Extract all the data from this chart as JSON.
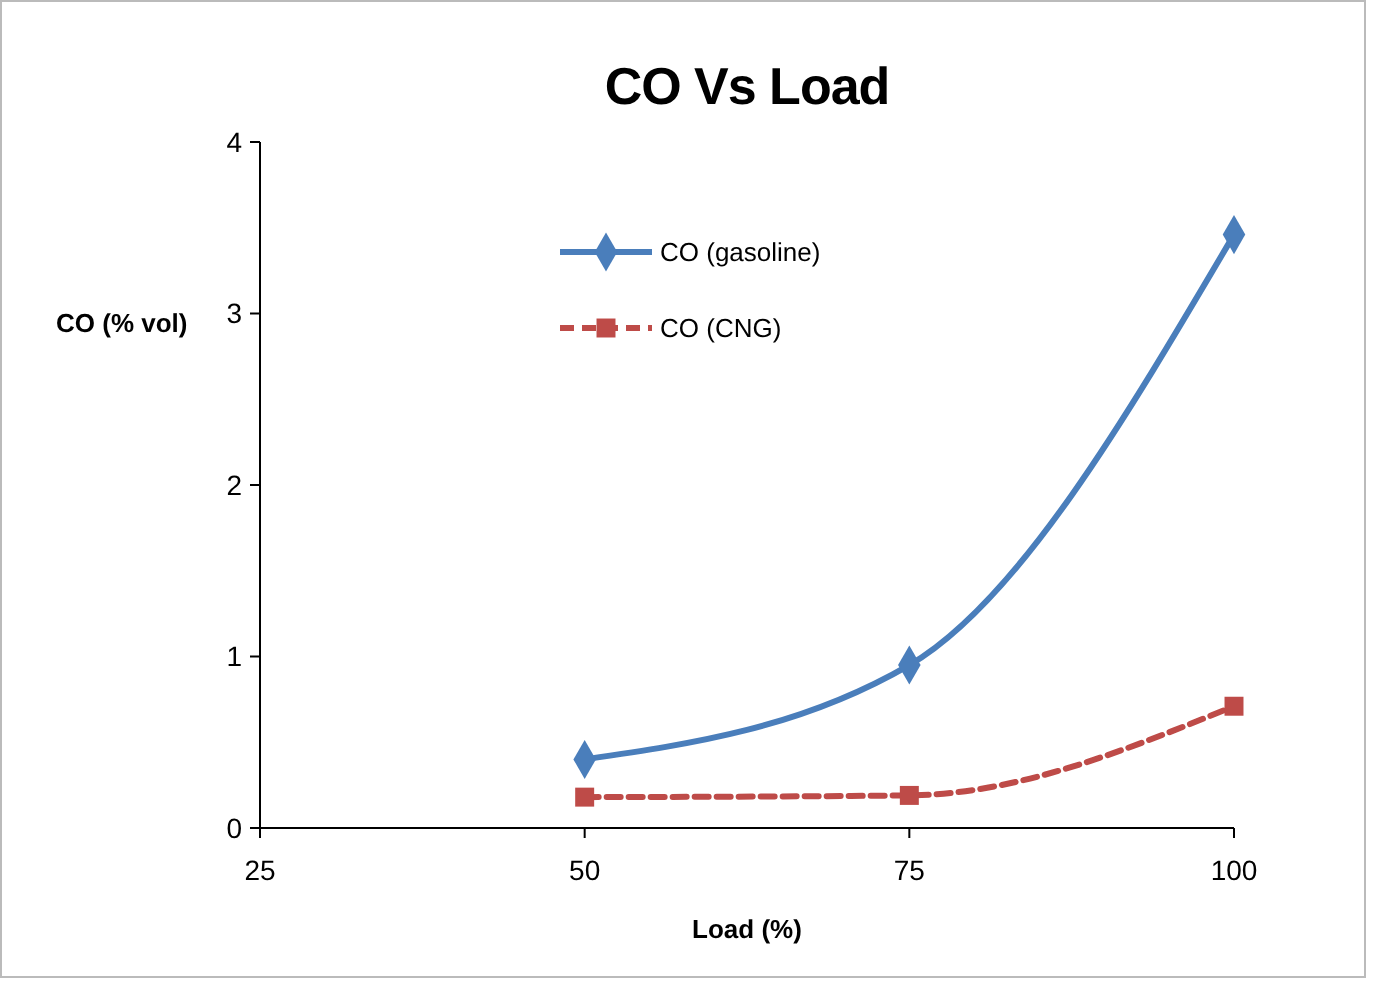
{
  "chart_data": {
    "type": "line",
    "title": "CO Vs Load",
    "xlabel": "Load (%)",
    "ylabel": "CO (% vol)",
    "x": [
      50,
      75,
      100
    ],
    "xlim": [
      25,
      100
    ],
    "xticks": [
      25,
      50,
      75,
      100
    ],
    "ylim": [
      0,
      4
    ],
    "yticks": [
      0,
      1,
      2,
      3,
      4
    ],
    "grid": false,
    "legend": "top",
    "series": [
      {
        "name": "CO (gasoline)",
        "color": "#4a7ebb",
        "values": [
          0.4,
          0.95,
          3.46
        ],
        "marker": "diamond",
        "line_style": "solid"
      },
      {
        "name": "CO (CNG)",
        "color": "#be4b48",
        "values": [
          0.18,
          0.19,
          0.71
        ],
        "marker": "square",
        "line_style": "dashed"
      }
    ]
  }
}
